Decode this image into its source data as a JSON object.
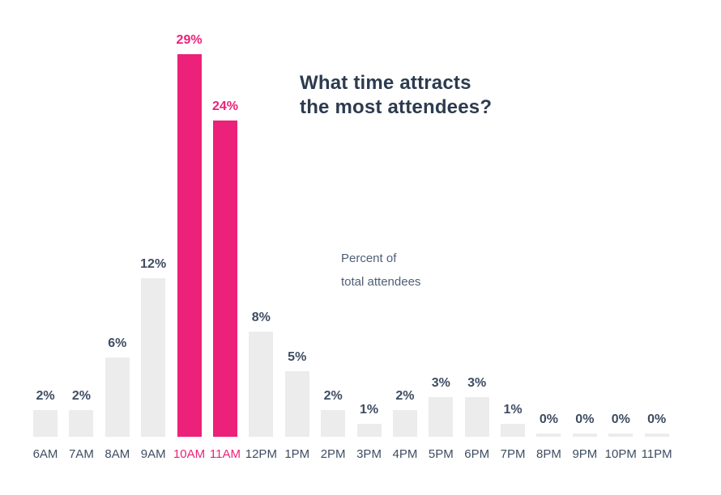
{
  "title": {
    "line1": "What time attracts",
    "line2": "the most attendees?"
  },
  "subtitle": {
    "line1": "Percent of",
    "line2": "total attendees"
  },
  "chart_data": {
    "type": "bar",
    "title": "What time attracts the most attendees?",
    "ylabel": "Percent of total attendees",
    "unit": "%",
    "categories": [
      "6AM",
      "7AM",
      "8AM",
      "9AM",
      "10AM",
      "11AM",
      "12PM",
      "1PM",
      "2PM",
      "3PM",
      "4PM",
      "5PM",
      "6PM",
      "7PM",
      "8PM",
      "9PM",
      "10PM",
      "11PM"
    ],
    "values": [
      2,
      2,
      6,
      12,
      29,
      24,
      8,
      5,
      2,
      1,
      2,
      3,
      3,
      1,
      0,
      0,
      0,
      0
    ],
    "data_labels": [
      "2%",
      "2%",
      "6%",
      "12%",
      "29%",
      "24%",
      "8%",
      "5%",
      "2%",
      "1%",
      "2%",
      "3%",
      "3%",
      "1%",
      "0%",
      "0%",
      "0%",
      "0%"
    ],
    "highlight_indices": [
      4,
      5
    ],
    "ylim": [
      0,
      30
    ],
    "grid": false,
    "legend_position": "none",
    "colors": {
      "bar_default": "#ececec",
      "bar_highlight": "#ec2179",
      "label_default": "#3e4d63",
      "label_highlight": "#ec2179",
      "title_text": "#2d3b4f",
      "subtitle_text": "#4e5f75",
      "background": "#ffffff"
    }
  }
}
